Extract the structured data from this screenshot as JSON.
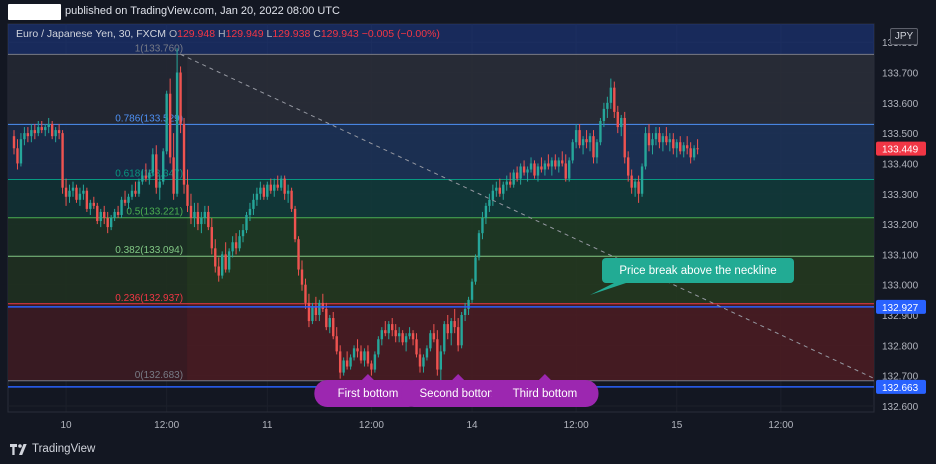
{
  "header": {
    "published_text": "published on TradingView.com, Jan 20, 2022 08:00 UTC"
  },
  "legend": {
    "symbol": "Euro / Japanese Yen, 30, FXCM",
    "open_label": "O",
    "open": "129.948",
    "high_label": "H",
    "high": "129.949",
    "low_label": "L",
    "low": "129.938",
    "close_label": "C",
    "close": "129.943",
    "change": "−0.005 (−0.00%)"
  },
  "currency": "JPY",
  "footer": {
    "brand": "TradingView"
  },
  "colors": {
    "background": "#131722",
    "up": "#26a69a",
    "down": "#ef5350",
    "neckline": "#2962ff",
    "callout": "#22ab94",
    "bottom_label": "#9c27b0"
  },
  "chart_data": {
    "type": "candlestick",
    "symbol": "EURJPY",
    "timeframe": "30",
    "price_axis": {
      "min": 132.58,
      "max": 133.86,
      "ticks": [
        133.8,
        133.7,
        133.6,
        133.5,
        133.4,
        133.3,
        133.2,
        133.1,
        133.0,
        132.9,
        132.8,
        132.7,
        132.6
      ],
      "tick_labels": [
        "133.800",
        "133.700",
        "133.600",
        "133.500",
        "133.400",
        "133.300",
        "133.200",
        "133.100",
        "133.000",
        "132.900",
        "132.800",
        "132.700",
        "132.600"
      ]
    },
    "time_axis": {
      "labels": [
        "10",
        "12:00",
        "11",
        "12:00",
        "14",
        "12:00",
        "15",
        "12:00"
      ],
      "bar_index": [
        15,
        44,
        73,
        103,
        132,
        162,
        191,
        221
      ]
    },
    "price_badges": [
      {
        "value": "133.449",
        "kind": "last",
        "color": "#f23645"
      },
      {
        "value": "132.927",
        "kind": "neckline",
        "color": "#2962ff"
      },
      {
        "value": "132.663",
        "kind": "support",
        "color": "#2962ff"
      }
    ],
    "fibonacci": {
      "from_bar": 47,
      "to_bar": 248,
      "levels": [
        {
          "ratio": "1",
          "price": 133.76,
          "label": "1(133.760)",
          "color": "#787b86"
        },
        {
          "ratio": "0.786",
          "price": 133.529,
          "label": "0.786(133.529)",
          "color": "#4e91f5"
        },
        {
          "ratio": "0.618",
          "price": 133.347,
          "label": "0.618(133.347)",
          "color": "#089981"
        },
        {
          "ratio": "0.5",
          "price": 133.221,
          "label": "0.5(133.221)",
          "color": "#4caf50"
        },
        {
          "ratio": "0.382",
          "price": 133.094,
          "label": "0.382(133.094)",
          "color": "#81c784"
        },
        {
          "ratio": "0.236",
          "price": 132.937,
          "label": "0.236(132.937)",
          "color": "#f23645"
        },
        {
          "ratio": "0",
          "price": 132.683,
          "label": "0(132.683)",
          "color": "#787b86"
        }
      ]
    },
    "horizontal_lines": [
      {
        "price": 132.927,
        "color": "#2962ff",
        "name": "neckline"
      },
      {
        "price": 132.663,
        "color": "#2962ff",
        "name": "support"
      }
    ],
    "trend_line": {
      "from": {
        "bar": 48,
        "price": 133.76
      },
      "to": {
        "bar": 248,
        "price": 132.69
      },
      "style": "dashed"
    },
    "annotations": [
      {
        "text": "Price break above the neckline",
        "bar": 170,
        "price": 132.95,
        "kind": "callout"
      },
      {
        "text": "First bottom",
        "bar": 102,
        "kind": "label"
      },
      {
        "text": "Second bottom",
        "bar": 128,
        "kind": "label"
      },
      {
        "text": "Third bottom",
        "bar": 153,
        "kind": "label"
      }
    ],
    "candles": [
      [
        133.49,
        133.51,
        133.43,
        133.45
      ],
      [
        133.45,
        133.48,
        133.38,
        133.4
      ],
      [
        133.4,
        133.5,
        133.39,
        133.48
      ],
      [
        133.48,
        133.52,
        133.46,
        133.5
      ],
      [
        133.5,
        133.52,
        133.47,
        133.49
      ],
      [
        133.49,
        133.53,
        133.47,
        133.51
      ],
      [
        133.51,
        133.53,
        133.48,
        133.5
      ],
      [
        133.5,
        133.54,
        133.49,
        133.52
      ],
      [
        133.52,
        133.54,
        133.5,
        133.51
      ],
      [
        133.51,
        133.53,
        133.49,
        133.52
      ],
      [
        133.52,
        133.55,
        133.5,
        133.53
      ],
      [
        133.53,
        133.54,
        133.48,
        133.49
      ],
      [
        133.49,
        133.52,
        133.47,
        133.51
      ],
      [
        133.51,
        133.53,
        133.48,
        133.5
      ],
      [
        133.5,
        133.51,
        133.3,
        133.32
      ],
      [
        133.32,
        133.35,
        133.26,
        133.29
      ],
      [
        133.29,
        133.33,
        133.27,
        133.31
      ],
      [
        133.31,
        133.34,
        133.29,
        133.32
      ],
      [
        133.32,
        133.33,
        133.27,
        133.28
      ],
      [
        133.28,
        133.32,
        133.26,
        133.3
      ],
      [
        133.3,
        133.33,
        133.28,
        133.31
      ],
      [
        133.31,
        133.32,
        133.24,
        133.25
      ],
      [
        133.25,
        133.28,
        133.23,
        133.27
      ],
      [
        133.27,
        133.29,
        133.25,
        133.26
      ],
      [
        133.26,
        133.27,
        133.2,
        133.21
      ],
      [
        133.21,
        133.25,
        133.19,
        133.24
      ],
      [
        133.24,
        133.26,
        133.2,
        133.22
      ],
      [
        133.22,
        133.24,
        133.17,
        133.19
      ],
      [
        133.19,
        133.23,
        133.18,
        133.22
      ],
      [
        133.22,
        133.25,
        133.21,
        133.24
      ],
      [
        133.24,
        133.26,
        133.22,
        133.23
      ],
      [
        133.23,
        133.29,
        133.22,
        133.28
      ],
      [
        133.28,
        133.31,
        133.26,
        133.27
      ],
      [
        133.27,
        133.3,
        133.25,
        133.29
      ],
      [
        133.29,
        133.33,
        133.28,
        133.31
      ],
      [
        133.31,
        133.34,
        133.29,
        133.3
      ],
      [
        133.3,
        133.35,
        133.29,
        133.34
      ],
      [
        133.34,
        133.38,
        133.33,
        133.36
      ],
      [
        133.36,
        133.4,
        133.34,
        133.35
      ],
      [
        133.35,
        133.38,
        133.33,
        133.37
      ],
      [
        133.37,
        133.45,
        133.36,
        133.43
      ],
      [
        133.43,
        133.46,
        133.3,
        133.32
      ],
      [
        133.32,
        133.36,
        133.28,
        133.34
      ],
      [
        133.34,
        133.45,
        133.33,
        133.44
      ],
      [
        133.44,
        133.64,
        133.43,
        133.63
      ],
      [
        133.63,
        133.68,
        133.4,
        133.42
      ],
      [
        133.42,
        133.5,
        133.28,
        133.3
      ],
      [
        133.3,
        133.78,
        133.29,
        133.7
      ],
      [
        133.7,
        133.72,
        133.5,
        133.53
      ],
      [
        133.53,
        133.55,
        133.3,
        133.33
      ],
      [
        133.33,
        133.38,
        133.24,
        133.26
      ],
      [
        133.26,
        133.3,
        133.2,
        133.22
      ],
      [
        133.22,
        133.27,
        133.19,
        133.24
      ],
      [
        133.24,
        133.27,
        133.18,
        133.2
      ],
      [
        133.2,
        133.24,
        133.17,
        133.22
      ],
      [
        133.22,
        133.26,
        133.2,
        133.24
      ],
      [
        133.24,
        133.26,
        133.18,
        133.19
      ],
      [
        133.19,
        133.22,
        133.1,
        133.12
      ],
      [
        133.12,
        133.15,
        133.04,
        133.06
      ],
      [
        133.06,
        133.09,
        133.01,
        133.03
      ],
      [
        133.03,
        133.11,
        133.02,
        133.1
      ],
      [
        133.1,
        133.14,
        133.04,
        133.05
      ],
      [
        133.05,
        133.12,
        133.04,
        133.11
      ],
      [
        133.11,
        133.16,
        133.09,
        133.14
      ],
      [
        133.14,
        133.17,
        133.1,
        133.12
      ],
      [
        133.12,
        133.18,
        133.11,
        133.16
      ],
      [
        133.16,
        133.2,
        133.14,
        133.18
      ],
      [
        133.18,
        133.24,
        133.17,
        133.23
      ],
      [
        133.23,
        133.27,
        133.21,
        133.25
      ],
      [
        133.25,
        133.3,
        133.23,
        133.28
      ],
      [
        133.28,
        133.32,
        133.26,
        133.3
      ],
      [
        133.3,
        133.34,
        133.28,
        133.32
      ],
      [
        133.32,
        133.33,
        133.28,
        133.29
      ],
      [
        133.29,
        133.34,
        133.28,
        133.33
      ],
      [
        133.33,
        133.35,
        133.3,
        133.31
      ],
      [
        133.31,
        133.35,
        133.29,
        133.33
      ],
      [
        133.33,
        133.36,
        133.31,
        133.32
      ],
      [
        133.32,
        133.36,
        133.31,
        133.35
      ],
      [
        133.35,
        133.36,
        133.28,
        133.3
      ],
      [
        133.3,
        133.33,
        133.27,
        133.31
      ],
      [
        133.31,
        133.32,
        133.24,
        133.25
      ],
      [
        133.25,
        133.26,
        133.14,
        133.15
      ],
      [
        133.15,
        133.16,
        133.03,
        133.05
      ],
      [
        133.05,
        133.08,
        132.98,
        133.0
      ],
      [
        133.0,
        133.02,
        132.92,
        132.94
      ],
      [
        132.94,
        132.97,
        132.86,
        132.88
      ],
      [
        132.88,
        132.94,
        132.87,
        132.93
      ],
      [
        132.93,
        132.96,
        132.88,
        132.9
      ],
      [
        132.9,
        132.95,
        132.88,
        132.94
      ],
      [
        132.94,
        132.97,
        132.91,
        132.92
      ],
      [
        132.92,
        132.94,
        132.85,
        132.86
      ],
      [
        132.86,
        132.9,
        132.84,
        132.89
      ],
      [
        132.89,
        132.91,
        132.82,
        132.83
      ],
      [
        132.83,
        132.86,
        132.77,
        132.78
      ],
      [
        132.78,
        132.8,
        132.69,
        132.71
      ],
      [
        132.71,
        132.76,
        132.7,
        132.75
      ],
      [
        132.75,
        132.78,
        132.72,
        132.73
      ],
      [
        132.73,
        132.77,
        132.72,
        132.76
      ],
      [
        132.76,
        132.8,
        132.75,
        132.79
      ],
      [
        132.79,
        132.82,
        132.76,
        132.78
      ],
      [
        132.78,
        132.8,
        132.74,
        132.75
      ],
      [
        132.75,
        132.79,
        132.73,
        132.78
      ],
      [
        132.78,
        132.8,
        132.73,
        132.74
      ],
      [
        132.74,
        132.75,
        132.7,
        132.72
      ],
      [
        132.72,
        132.78,
        132.71,
        132.77
      ],
      [
        132.77,
        132.83,
        132.76,
        132.82
      ],
      [
        132.82,
        132.86,
        132.8,
        132.85
      ],
      [
        132.85,
        132.88,
        132.83,
        132.84
      ],
      [
        132.84,
        132.88,
        132.82,
        132.87
      ],
      [
        132.87,
        132.89,
        132.83,
        132.85
      ],
      [
        132.85,
        132.87,
        132.81,
        132.83
      ],
      [
        132.83,
        132.86,
        132.81,
        132.84
      ],
      [
        132.84,
        132.85,
        132.8,
        132.81
      ],
      [
        132.81,
        132.84,
        132.78,
        132.83
      ],
      [
        132.83,
        132.86,
        132.82,
        132.84
      ],
      [
        132.84,
        132.85,
        132.8,
        132.82
      ],
      [
        132.82,
        132.84,
        132.76,
        132.77
      ],
      [
        132.77,
        132.79,
        132.71,
        132.73
      ],
      [
        132.73,
        132.77,
        132.71,
        132.76
      ],
      [
        132.76,
        132.8,
        132.75,
        132.79
      ],
      [
        132.79,
        132.85,
        132.78,
        132.84
      ],
      [
        132.84,
        132.87,
        132.81,
        132.82
      ],
      [
        132.82,
        132.85,
        132.7,
        132.72
      ],
      [
        132.72,
        132.8,
        132.66,
        132.78
      ],
      [
        132.78,
        132.88,
        132.77,
        132.87
      ],
      [
        132.87,
        132.9,
        132.82,
        132.84
      ],
      [
        132.84,
        132.89,
        132.8,
        132.88
      ],
      [
        132.88,
        132.92,
        132.84,
        132.86
      ],
      [
        132.86,
        132.89,
        132.78,
        132.8
      ],
      [
        132.8,
        132.91,
        132.79,
        132.9
      ],
      [
        132.9,
        132.94,
        132.88,
        132.92
      ],
      [
        132.92,
        132.96,
        132.9,
        132.95
      ],
      [
        132.95,
        133.02,
        132.94,
        133.01
      ],
      [
        133.01,
        133.1,
        133.0,
        133.09
      ],
      [
        133.09,
        133.18,
        133.08,
        133.17
      ],
      [
        133.17,
        133.24,
        133.15,
        133.22
      ],
      [
        133.22,
        133.27,
        133.2,
        133.26
      ],
      [
        133.26,
        133.3,
        133.24,
        133.28
      ],
      [
        133.28,
        133.33,
        133.26,
        133.31
      ],
      [
        133.31,
        133.34,
        133.29,
        133.32
      ],
      [
        133.32,
        133.35,
        133.29,
        133.3
      ],
      [
        133.3,
        133.34,
        133.28,
        133.33
      ],
      [
        133.33,
        133.36,
        133.31,
        133.34
      ],
      [
        133.34,
        133.37,
        133.32,
        133.33
      ],
      [
        133.33,
        133.38,
        133.32,
        133.37
      ],
      [
        133.37,
        133.39,
        133.34,
        133.35
      ],
      [
        133.35,
        133.4,
        133.33,
        133.39
      ],
      [
        133.39,
        133.41,
        133.36,
        133.37
      ],
      [
        133.37,
        133.39,
        133.34,
        133.38
      ],
      [
        133.38,
        133.42,
        133.37,
        133.4
      ],
      [
        133.4,
        133.41,
        133.35,
        133.36
      ],
      [
        133.36,
        133.4,
        133.34,
        133.39
      ],
      [
        133.39,
        133.42,
        133.37,
        133.38
      ],
      [
        133.38,
        133.41,
        133.36,
        133.4
      ],
      [
        133.4,
        133.43,
        133.38,
        133.39
      ],
      [
        133.39,
        133.42,
        133.36,
        133.41
      ],
      [
        133.41,
        133.43,
        133.38,
        133.39
      ],
      [
        133.39,
        133.42,
        133.37,
        133.41
      ],
      [
        133.41,
        133.44,
        133.39,
        133.4
      ],
      [
        133.4,
        133.43,
        133.34,
        133.35
      ],
      [
        133.35,
        133.42,
        133.34,
        133.41
      ],
      [
        133.41,
        133.48,
        133.4,
        133.47
      ],
      [
        133.47,
        133.53,
        133.45,
        133.51
      ],
      [
        133.51,
        133.53,
        133.45,
        133.46
      ],
      [
        133.46,
        133.49,
        133.43,
        133.48
      ],
      [
        133.48,
        133.51,
        133.45,
        133.47
      ],
      [
        133.47,
        133.5,
        133.44,
        133.49
      ],
      [
        133.49,
        133.51,
        133.4,
        133.42
      ],
      [
        133.42,
        133.48,
        133.4,
        133.47
      ],
      [
        133.47,
        133.55,
        133.46,
        133.54
      ],
      [
        133.54,
        133.6,
        133.52,
        133.58
      ],
      [
        133.58,
        133.62,
        133.55,
        133.6
      ],
      [
        133.6,
        133.68,
        133.58,
        133.65
      ],
      [
        133.65,
        133.67,
        133.55,
        133.57
      ],
      [
        133.57,
        133.59,
        133.5,
        133.52
      ],
      [
        133.52,
        133.56,
        133.49,
        133.55
      ],
      [
        133.55,
        133.57,
        133.4,
        133.42
      ],
      [
        133.42,
        133.44,
        133.34,
        133.36
      ],
      [
        133.36,
        133.38,
        133.3,
        133.32
      ],
      [
        133.32,
        133.35,
        133.29,
        133.34
      ],
      [
        133.34,
        133.36,
        133.27,
        133.3
      ],
      [
        133.3,
        133.4,
        133.29,
        133.39
      ],
      [
        133.39,
        133.52,
        133.38,
        133.5
      ],
      [
        133.5,
        133.53,
        133.44,
        133.46
      ],
      [
        133.46,
        133.5,
        133.43,
        133.48
      ],
      [
        133.48,
        133.52,
        133.46,
        133.5
      ],
      [
        133.5,
        133.52,
        133.45,
        133.47
      ],
      [
        133.47,
        133.5,
        133.44,
        133.49
      ],
      [
        133.49,
        133.52,
        133.46,
        133.47
      ],
      [
        133.47,
        133.5,
        133.44,
        133.48
      ],
      [
        133.48,
        133.5,
        133.43,
        133.45
      ],
      [
        133.45,
        133.48,
        133.42,
        133.47
      ],
      [
        133.47,
        133.49,
        133.43,
        133.44
      ],
      [
        133.44,
        133.47,
        133.42,
        133.46
      ],
      [
        133.46,
        133.49,
        133.43,
        133.45
      ],
      [
        133.45,
        133.47,
        133.4,
        133.42
      ],
      [
        133.42,
        133.46,
        133.41,
        133.45
      ],
      [
        133.45,
        133.48,
        133.43,
        133.449
      ]
    ]
  }
}
